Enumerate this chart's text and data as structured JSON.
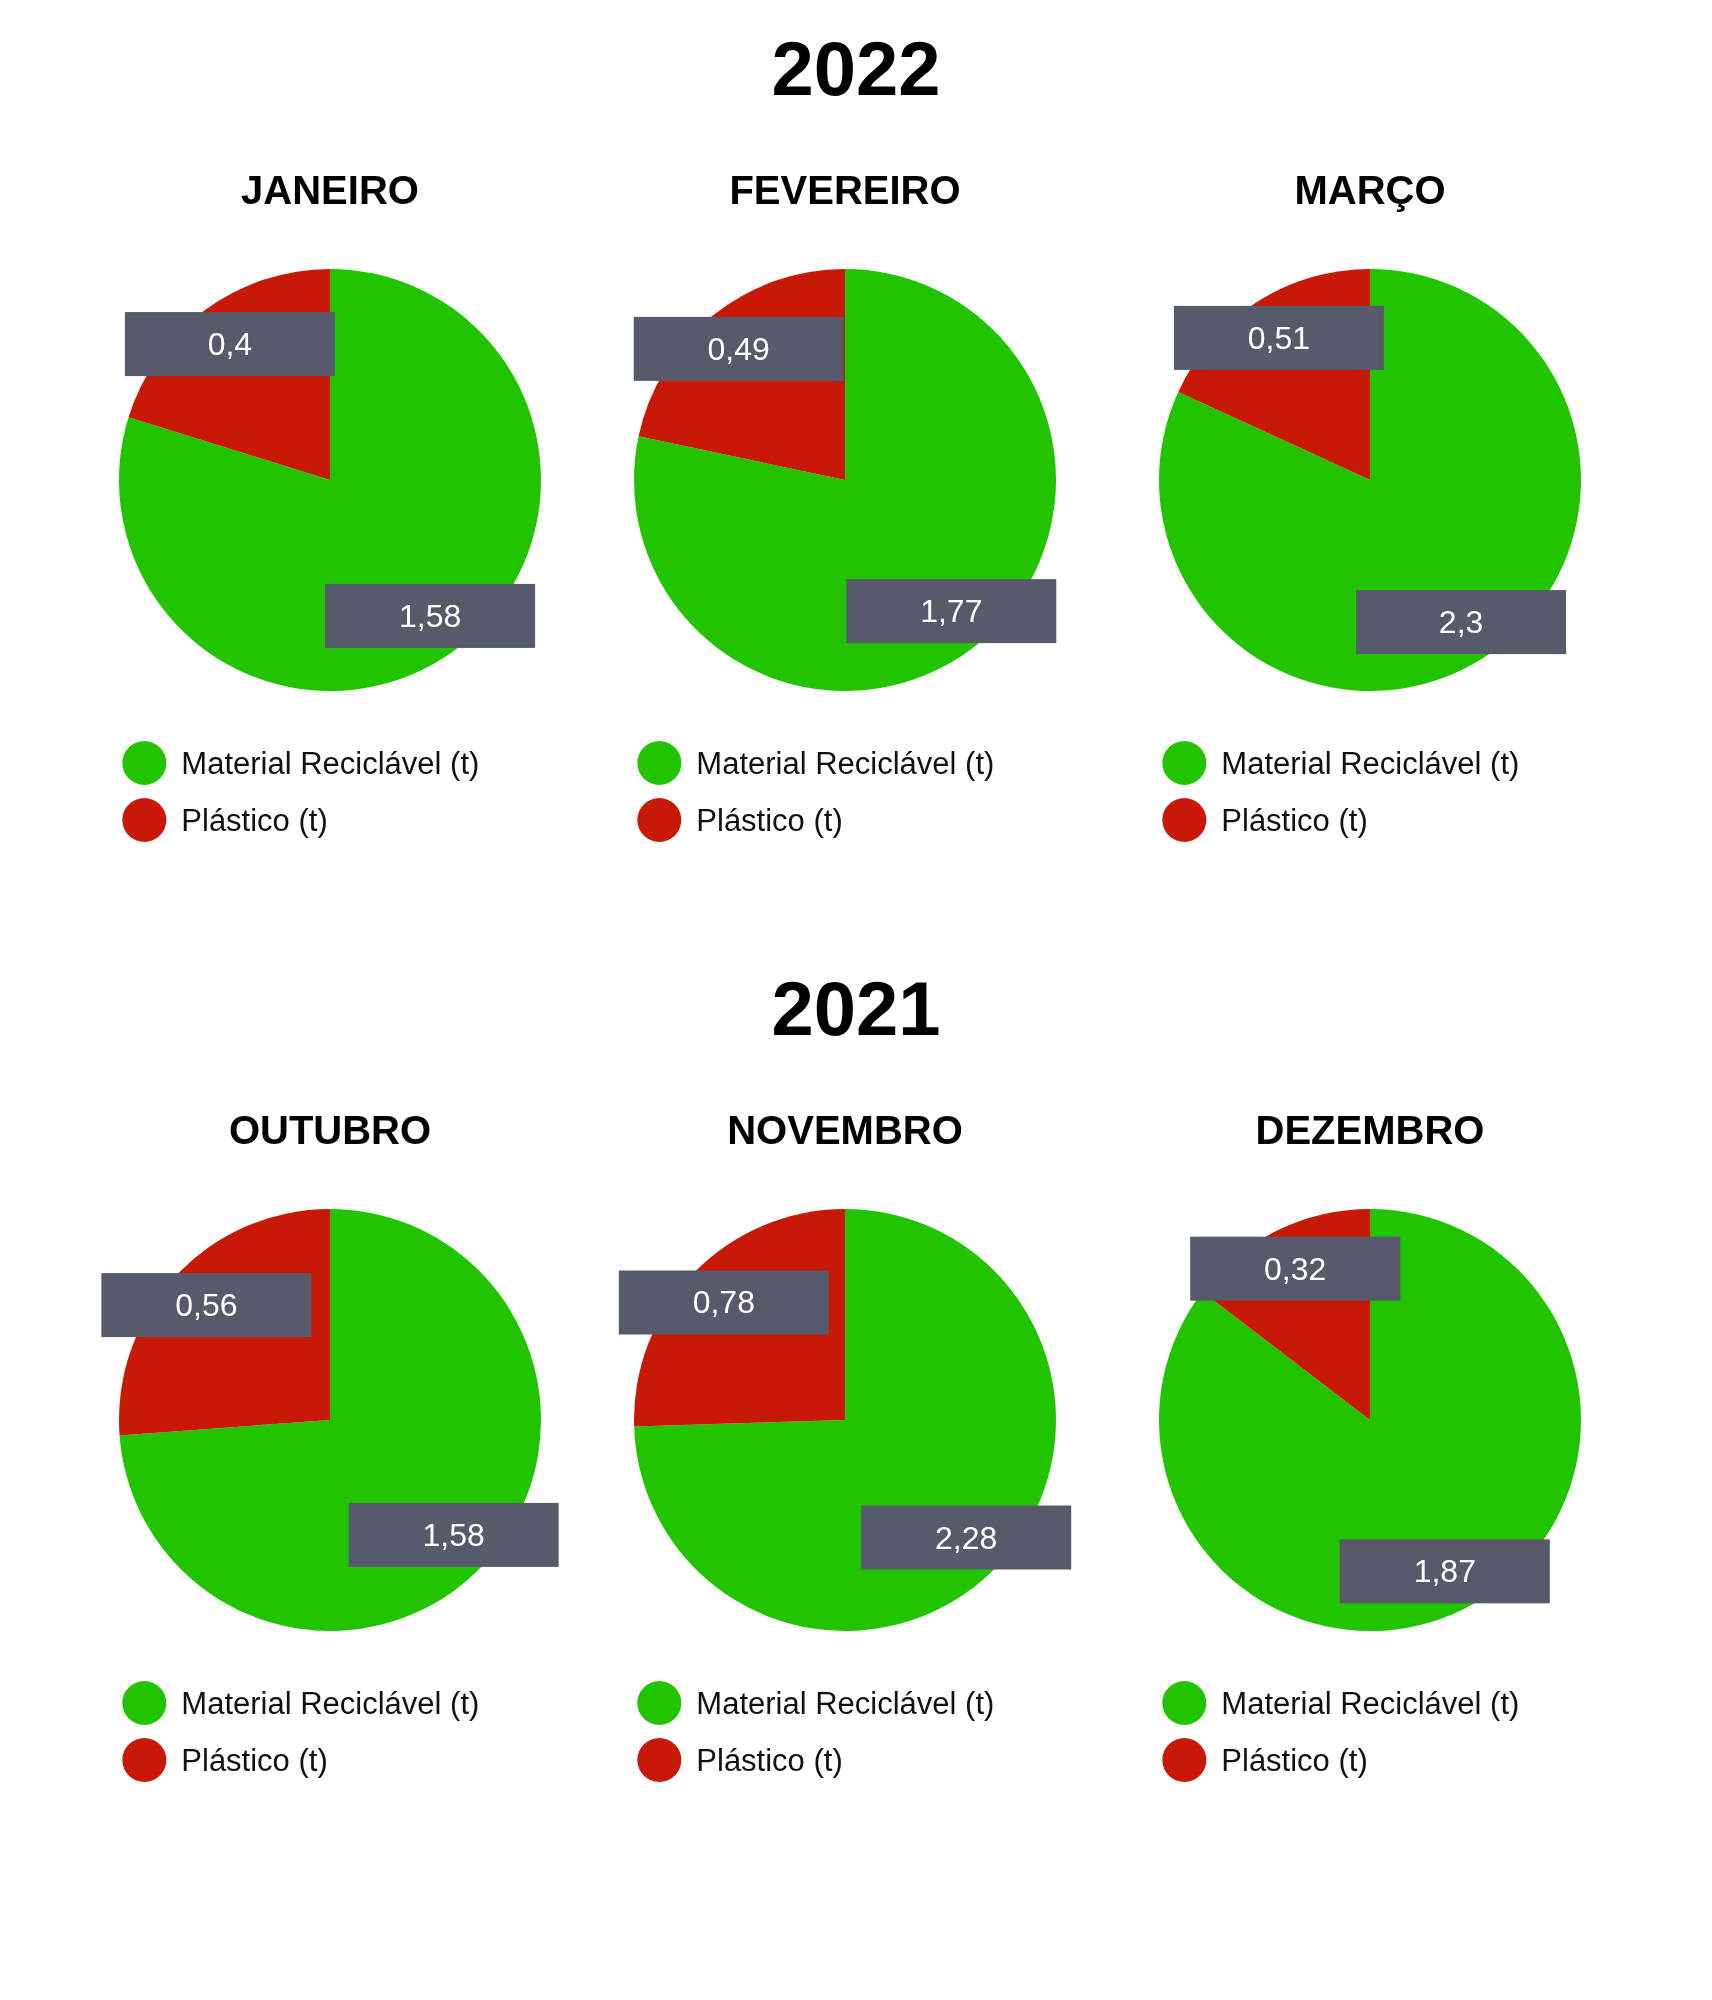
{
  "chart_data": [
    {
      "type": "pie",
      "title": "JANEIRO",
      "annotations": [
        "2022"
      ],
      "categories": [
        "Material Reciclável (t)",
        "Plástico (t)"
      ],
      "values": [
        1.58,
        0.4
      ],
      "colors": [
        "#22c400",
        "#c81806"
      ],
      "value_labels": [
        "1,58",
        "0,4"
      ],
      "legend": "bottom"
    },
    {
      "type": "pie",
      "title": "FEVEREIRO",
      "categories": [
        "Material Reciclável (t)",
        "Plástico (t)"
      ],
      "values": [
        1.77,
        0.49
      ],
      "colors": [
        "#22c400",
        "#c81806"
      ],
      "value_labels": [
        "1,77",
        "0,49"
      ],
      "legend": "bottom"
    },
    {
      "type": "pie",
      "title": "MARÇO",
      "categories": [
        "Material Reciclável (t)",
        "Plástico (t)"
      ],
      "values": [
        2.3,
        0.51
      ],
      "colors": [
        "#22c400",
        "#c81806"
      ],
      "value_labels": [
        "2,3",
        "0,51"
      ],
      "legend": "bottom"
    },
    {
      "type": "pie",
      "title": "OUTUBRO",
      "annotations": [
        "2021"
      ],
      "categories": [
        "Material Reciclável (t)",
        "Plástico (t)"
      ],
      "values": [
        1.58,
        0.56
      ],
      "colors": [
        "#22c400",
        "#c81806"
      ],
      "value_labels": [
        "1,58",
        "0,56"
      ],
      "legend": "bottom"
    },
    {
      "type": "pie",
      "title": "NOVEMBRO",
      "categories": [
        "Material Reciclável (t)",
        "Plástico (t)"
      ],
      "values": [
        2.28,
        0.78
      ],
      "colors": [
        "#22c400",
        "#c81806"
      ],
      "value_labels": [
        "2,28",
        "0,78"
      ],
      "legend": "bottom"
    },
    {
      "type": "pie",
      "title": "DEZEMBRO",
      "categories": [
        "Material Reciclável (t)",
        "Plástico (t)"
      ],
      "values": [
        1.87,
        0.32
      ],
      "colors": [
        "#22c400",
        "#c81806"
      ],
      "value_labels": [
        "1,87",
        "0,32"
      ],
      "legend": "bottom"
    }
  ]
}
